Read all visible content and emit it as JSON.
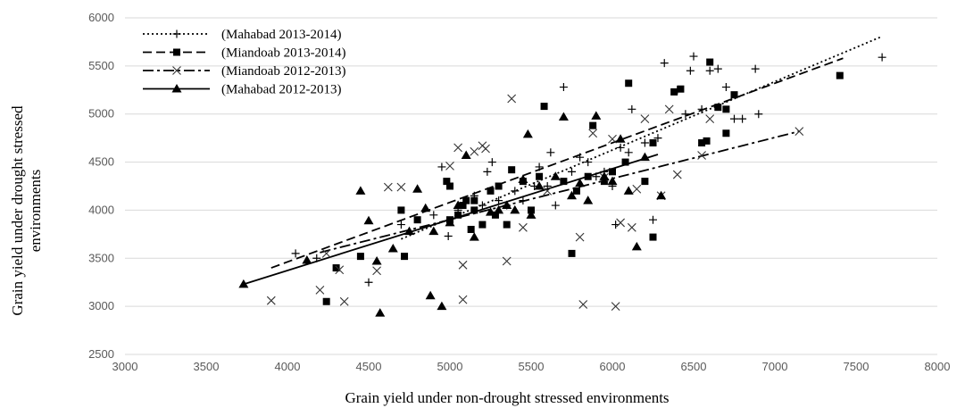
{
  "chart_data": {
    "type": "scatter",
    "xlabel": "Grain yield under non-drought stressed environments",
    "ylabel_lines": [
      "Grain yield under drought stressed",
      "environments"
    ],
    "xlim": [
      3000,
      8000
    ],
    "ylim": [
      2500,
      6000
    ],
    "x_ticks": [
      "3000",
      "3500",
      "4000",
      "4500",
      "5000",
      "5500",
      "6000",
      "6500",
      "7000",
      "7500",
      "8000"
    ],
    "y_ticks": [
      "2500",
      "3000",
      "3500",
      "4000",
      "4500",
      "5000",
      "5500",
      "6000"
    ],
    "grid": "horizontal",
    "legend_position": "top-left",
    "series": [
      {
        "name": "(Mahabad 2013-2014)",
        "marker": "plus",
        "line_style": "dotted",
        "trendline": [
          [
            4700,
            3700
          ],
          [
            7650,
            5800
          ]
        ],
        "points": [
          [
            4050,
            3550
          ],
          [
            4180,
            3500
          ],
          [
            4500,
            3250
          ],
          [
            4700,
            3850
          ],
          [
            4900,
            3950
          ],
          [
            4950,
            4450
          ],
          [
            4990,
            3730
          ],
          [
            5050,
            4000
          ],
          [
            5150,
            4150
          ],
          [
            5200,
            4050
          ],
          [
            5230,
            4400
          ],
          [
            5260,
            4500
          ],
          [
            5300,
            4100
          ],
          [
            5350,
            4050
          ],
          [
            5400,
            4200
          ],
          [
            5450,
            4100
          ],
          [
            5520,
            4250
          ],
          [
            5550,
            4450
          ],
          [
            5600,
            4250
          ],
          [
            5620,
            4600
          ],
          [
            5650,
            4050
          ],
          [
            5700,
            5280
          ],
          [
            5750,
            4400
          ],
          [
            5800,
            4550
          ],
          [
            5850,
            4500
          ],
          [
            5900,
            4350
          ],
          [
            5950,
            4400
          ],
          [
            6000,
            4250
          ],
          [
            6020,
            3850
          ],
          [
            6050,
            4650
          ],
          [
            6100,
            4600
          ],
          [
            6120,
            5050
          ],
          [
            6200,
            4700
          ],
          [
            6250,
            3900
          ],
          [
            6280,
            4750
          ],
          [
            6320,
            5530
          ],
          [
            6400,
            5250
          ],
          [
            6450,
            5000
          ],
          [
            6480,
            5450
          ],
          [
            6500,
            5600
          ],
          [
            6550,
            5050
          ],
          [
            6600,
            5450
          ],
          [
            6650,
            5470
          ],
          [
            6700,
            5280
          ],
          [
            6750,
            4950
          ],
          [
            6800,
            4950
          ],
          [
            6880,
            5470
          ],
          [
            6900,
            5000
          ],
          [
            7660,
            5590
          ]
        ]
      },
      {
        "name": "(Miandoab 2013-2014)",
        "marker": "square",
        "line_style": "dashed",
        "trendline": [
          [
            3900,
            3400
          ],
          [
            7420,
            5580
          ]
        ],
        "points": [
          [
            4240,
            3050
          ],
          [
            4300,
            3400
          ],
          [
            4450,
            3520
          ],
          [
            4700,
            4000
          ],
          [
            4720,
            3520
          ],
          [
            4800,
            3900
          ],
          [
            4980,
            4300
          ],
          [
            5000,
            4250
          ],
          [
            5000,
            3900
          ],
          [
            5050,
            3950
          ],
          [
            5080,
            4050
          ],
          [
            5100,
            4100
          ],
          [
            5130,
            3800
          ],
          [
            5150,
            4000
          ],
          [
            5150,
            4100
          ],
          [
            5200,
            3850
          ],
          [
            5250,
            4200
          ],
          [
            5280,
            3950
          ],
          [
            5300,
            4250
          ],
          [
            5350,
            3850
          ],
          [
            5380,
            4420
          ],
          [
            5450,
            4300
          ],
          [
            5500,
            4000
          ],
          [
            5550,
            4350
          ],
          [
            5580,
            5080
          ],
          [
            5700,
            4300
          ],
          [
            5750,
            3550
          ],
          [
            5780,
            4200
          ],
          [
            5850,
            4350
          ],
          [
            5880,
            4880
          ],
          [
            5950,
            4300
          ],
          [
            6000,
            4400
          ],
          [
            6080,
            4500
          ],
          [
            6100,
            5320
          ],
          [
            6200,
            4300
          ],
          [
            6250,
            4700
          ],
          [
            6250,
            3720
          ],
          [
            6380,
            5230
          ],
          [
            6420,
            5260
          ],
          [
            6550,
            4700
          ],
          [
            6580,
            4720
          ],
          [
            6600,
            5540
          ],
          [
            6650,
            5070
          ],
          [
            6700,
            5050
          ],
          [
            6700,
            4800
          ],
          [
            6750,
            5200
          ],
          [
            7400,
            5400
          ]
        ]
      },
      {
        "name": "(Miandoab 2012-2013)",
        "marker": "x",
        "line_style": "dashdot",
        "trendline": [
          [
            4200,
            3560
          ],
          [
            7150,
            4820
          ]
        ],
        "points": [
          [
            3900,
            3060
          ],
          [
            4200,
            3170
          ],
          [
            4240,
            3550
          ],
          [
            4320,
            3380
          ],
          [
            4350,
            3050
          ],
          [
            4550,
            3370
          ],
          [
            4620,
            4240
          ],
          [
            4700,
            4240
          ],
          [
            5000,
            4460
          ],
          [
            5050,
            4650
          ],
          [
            5080,
            3430
          ],
          [
            5080,
            3070
          ],
          [
            5150,
            4610
          ],
          [
            5200,
            4670
          ],
          [
            5220,
            4640
          ],
          [
            5350,
            3470
          ],
          [
            5380,
            5160
          ],
          [
            5450,
            3820
          ],
          [
            5600,
            4200
          ],
          [
            5800,
            3720
          ],
          [
            5820,
            3020
          ],
          [
            5880,
            4800
          ],
          [
            5950,
            4340
          ],
          [
            6000,
            4740
          ],
          [
            6020,
            3000
          ],
          [
            6050,
            3870
          ],
          [
            6120,
            3820
          ],
          [
            6150,
            4220
          ],
          [
            6200,
            4950
          ],
          [
            6300,
            4150
          ],
          [
            6350,
            5050
          ],
          [
            6400,
            4370
          ],
          [
            6550,
            4570
          ],
          [
            6600,
            4950
          ],
          [
            7150,
            4820
          ]
        ]
      },
      {
        "name": "(Mahabad 2012-2013)",
        "marker": "triangle",
        "line_style": "solid",
        "trendline": [
          [
            3730,
            3230
          ],
          [
            6280,
            4580
          ]
        ],
        "points": [
          [
            3730,
            3230
          ],
          [
            4120,
            3480
          ],
          [
            4450,
            4200
          ],
          [
            4500,
            3890
          ],
          [
            4550,
            3470
          ],
          [
            4570,
            2930
          ],
          [
            4650,
            3600
          ],
          [
            4750,
            3780
          ],
          [
            4800,
            4220
          ],
          [
            4850,
            4020
          ],
          [
            4880,
            3110
          ],
          [
            4900,
            3780
          ],
          [
            4950,
            3000
          ],
          [
            5000,
            3870
          ],
          [
            5050,
            4050
          ],
          [
            5100,
            4570
          ],
          [
            5150,
            3720
          ],
          [
            5250,
            3980
          ],
          [
            5300,
            4000
          ],
          [
            5350,
            4050
          ],
          [
            5400,
            4000
          ],
          [
            5450,
            4320
          ],
          [
            5480,
            4790
          ],
          [
            5500,
            3950
          ],
          [
            5550,
            4250
          ],
          [
            5650,
            4350
          ],
          [
            5700,
            4970
          ],
          [
            5750,
            4150
          ],
          [
            5800,
            4280
          ],
          [
            5850,
            4100
          ],
          [
            5900,
            4980
          ],
          [
            5950,
            4350
          ],
          [
            6000,
            4300
          ],
          [
            6050,
            4740
          ],
          [
            6100,
            4200
          ],
          [
            6150,
            3620
          ],
          [
            6200,
            4550
          ],
          [
            6300,
            4150
          ]
        ]
      }
    ]
  }
}
